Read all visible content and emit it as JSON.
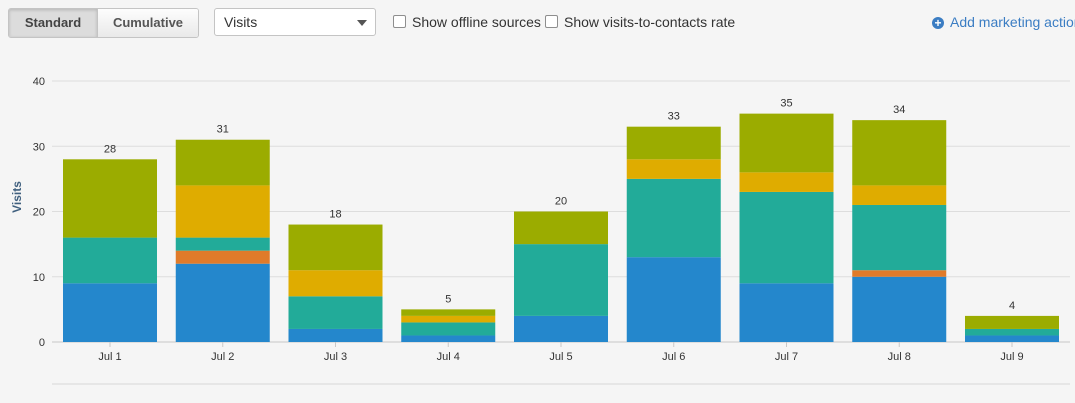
{
  "toolbar": {
    "view_toggle": {
      "standard_label": "Standard",
      "cumulative_label": "Cumulative",
      "active": "standard"
    },
    "metric_select": {
      "value": "Visits"
    },
    "show_offline_label": "Show offline sources",
    "show_offline_checked": false,
    "show_rate_label": "Show visits-to-contacts rate",
    "show_rate_checked": false,
    "add_action_label": "Add marketing action",
    "add_action_icon": "plus-circle-icon"
  },
  "chart_data": {
    "type": "bar",
    "stacked": true,
    "title": "",
    "xlabel": "",
    "ylabel": "Visits",
    "ylim": [
      0,
      40
    ],
    "yticks": [
      0,
      10,
      20,
      30,
      40
    ],
    "grid": true,
    "categories": [
      "Jul 1",
      "Jul 2",
      "Jul 3",
      "Jul 4",
      "Jul 5",
      "Jul 6",
      "Jul 7",
      "Jul 8",
      "Jul 9"
    ],
    "totals": [
      28,
      31,
      18,
      5,
      20,
      33,
      35,
      34,
      4
    ],
    "series": [
      {
        "color": "#2487cc",
        "values": [
          9,
          12,
          2,
          1,
          4,
          13,
          9,
          10,
          1
        ]
      },
      {
        "color": "#e07b2a",
        "values": [
          0,
          2,
          0,
          0,
          0,
          0,
          0,
          1,
          0
        ]
      },
      {
        "color": "#22ab99",
        "values": [
          7,
          2,
          5,
          2,
          11,
          12,
          14,
          10,
          1
        ]
      },
      {
        "color": "#dfac00",
        "values": [
          0,
          8,
          4,
          1,
          0,
          3,
          3,
          3,
          0
        ]
      },
      {
        "color": "#9bac00",
        "values": [
          12,
          7,
          7,
          1,
          5,
          5,
          9,
          10,
          2
        ]
      }
    ]
  }
}
